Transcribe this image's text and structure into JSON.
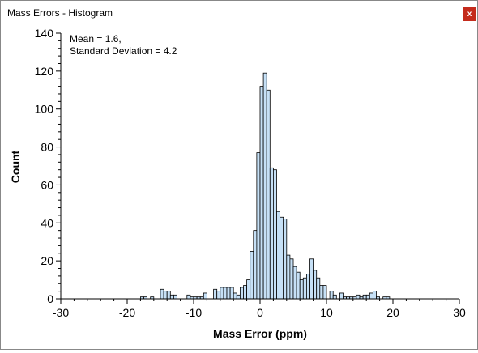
{
  "window": {
    "title": "Mass Errors - Histogram",
    "close_label": "x",
    "close_color": "#c42b1c"
  },
  "chart_data": {
    "type": "bar",
    "histogram": true,
    "bin_width": 0.5,
    "bin_start": -30,
    "annotation_lines": [
      "Mean = 1.6,",
      "Standard Deviation = 4.2"
    ],
    "xlabel": "Mass Error (ppm)",
    "ylabel": "Count",
    "xlim": [
      -30,
      30
    ],
    "ylim": [
      0,
      140
    ],
    "xticks": [
      -30,
      -20,
      -10,
      0,
      10,
      20,
      30
    ],
    "yticks": [
      0,
      20,
      40,
      60,
      80,
      100,
      120,
      140
    ],
    "bar_fill": "#c6e0f6",
    "bar_stroke": "#000000",
    "grid": false,
    "bins": [
      {
        "x": -18,
        "y": 1
      },
      {
        "x": -17.5,
        "y": 1
      },
      {
        "x": -16.5,
        "y": 1
      },
      {
        "x": -15,
        "y": 5
      },
      {
        "x": -14.5,
        "y": 4
      },
      {
        "x": -14,
        "y": 4
      },
      {
        "x": -13.5,
        "y": 2
      },
      {
        "x": -13,
        "y": 2
      },
      {
        "x": -11,
        "y": 2
      },
      {
        "x": -10.5,
        "y": 1
      },
      {
        "x": -10,
        "y": 1
      },
      {
        "x": -9.5,
        "y": 1
      },
      {
        "x": -9,
        "y": 1
      },
      {
        "x": -8.5,
        "y": 3
      },
      {
        "x": -7,
        "y": 5
      },
      {
        "x": -6.5,
        "y": 4
      },
      {
        "x": -6,
        "y": 6
      },
      {
        "x": -5.5,
        "y": 6
      },
      {
        "x": -5,
        "y": 6
      },
      {
        "x": -4.5,
        "y": 6
      },
      {
        "x": -4,
        "y": 3
      },
      {
        "x": -3.5,
        "y": 2
      },
      {
        "x": -3,
        "y": 6
      },
      {
        "x": -2.5,
        "y": 7
      },
      {
        "x": -2,
        "y": 10
      },
      {
        "x": -1.5,
        "y": 25
      },
      {
        "x": -1,
        "y": 36
      },
      {
        "x": -0.5,
        "y": 77
      },
      {
        "x": 0,
        "y": 112
      },
      {
        "x": 0.5,
        "y": 119
      },
      {
        "x": 1,
        "y": 110
      },
      {
        "x": 1.5,
        "y": 69
      },
      {
        "x": 2,
        "y": 68
      },
      {
        "x": 2.5,
        "y": 46
      },
      {
        "x": 3,
        "y": 43
      },
      {
        "x": 3.5,
        "y": 42
      },
      {
        "x": 4,
        "y": 23
      },
      {
        "x": 4.5,
        "y": 21
      },
      {
        "x": 5,
        "y": 17
      },
      {
        "x": 5.5,
        "y": 14
      },
      {
        "x": 6,
        "y": 10
      },
      {
        "x": 6.5,
        "y": 11
      },
      {
        "x": 7,
        "y": 13
      },
      {
        "x": 7.5,
        "y": 21
      },
      {
        "x": 8,
        "y": 15
      },
      {
        "x": 8.5,
        "y": 11
      },
      {
        "x": 9,
        "y": 7
      },
      {
        "x": 9.5,
        "y": 7
      },
      {
        "x": 10.5,
        "y": 4
      },
      {
        "x": 11,
        "y": 2
      },
      {
        "x": 12,
        "y": 3
      },
      {
        "x": 12.5,
        "y": 1
      },
      {
        "x": 13,
        "y": 1
      },
      {
        "x": 13.5,
        "y": 1
      },
      {
        "x": 14,
        "y": 1
      },
      {
        "x": 14.5,
        "y": 2
      },
      {
        "x": 15,
        "y": 1
      },
      {
        "x": 15.5,
        "y": 2
      },
      {
        "x": 16,
        "y": 2
      },
      {
        "x": 16.5,
        "y": 3
      },
      {
        "x": 17,
        "y": 4
      },
      {
        "x": 17.5,
        "y": 1
      },
      {
        "x": 18.5,
        "y": 1
      },
      {
        "x": 19,
        "y": 1
      }
    ]
  }
}
